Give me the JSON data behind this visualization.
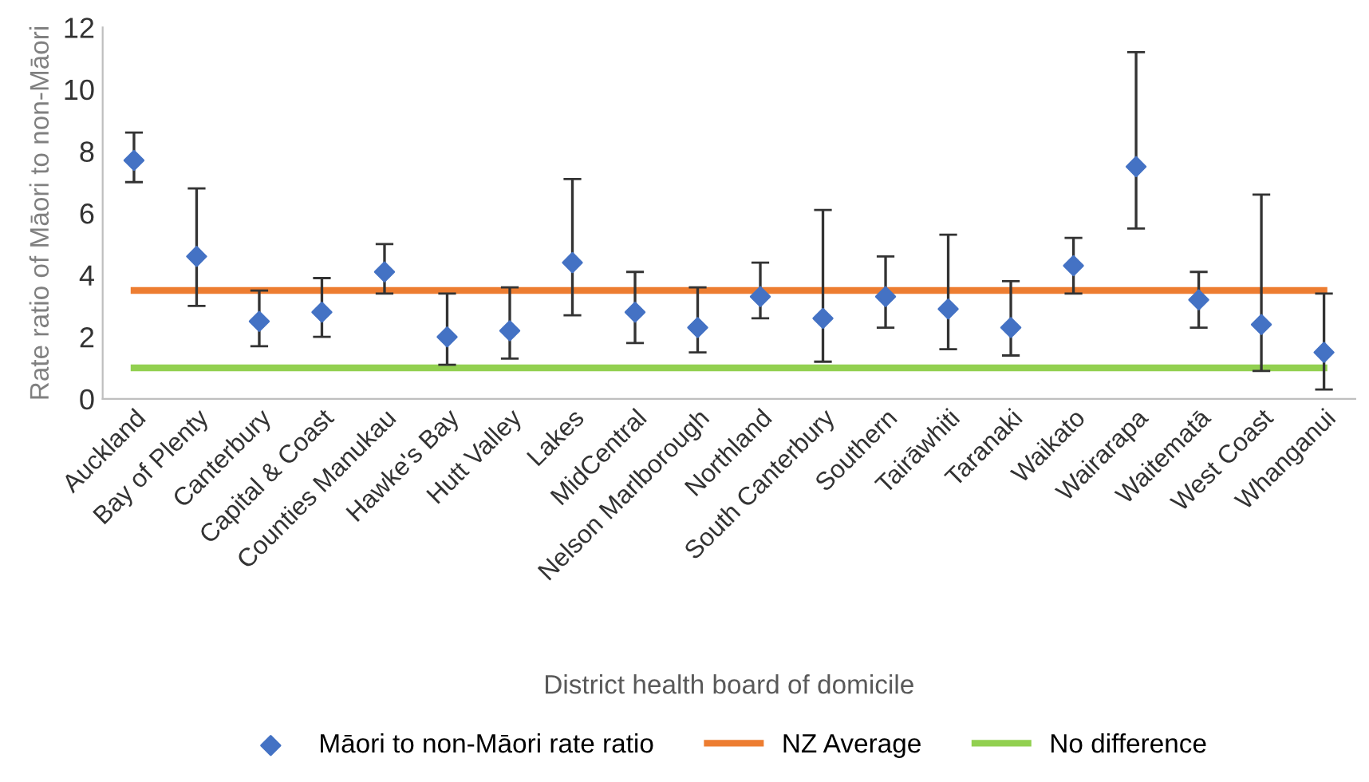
{
  "chart_data": {
    "type": "scatter",
    "xlabel": "District health board of domicile",
    "ylabel": "Rate ratio of Māori to non-Māori",
    "categories": [
      "Auckland",
      "Bay of Plenty",
      "Canterbury",
      "Capital & Coast",
      "Counties Manukau",
      "Hawke's Bay",
      "Hutt Valley",
      "Lakes",
      "MidCentral",
      "Nelson Marlborough",
      "Northland",
      "South Canterbury",
      "Southern",
      "Tairāwhiti",
      "Taranaki",
      "Waikato",
      "Wairarapa",
      "Waitematā",
      "West Coast",
      "Whanganui"
    ],
    "series": [
      {
        "name": "Māori to non-Māori rate ratio",
        "color": "#4472c4",
        "marker": "diamond",
        "values": [
          7.7,
          4.6,
          2.5,
          2.8,
          4.1,
          2.0,
          2.2,
          4.4,
          2.8,
          2.3,
          3.3,
          2.6,
          3.3,
          2.9,
          2.3,
          4.3,
          7.5,
          3.2,
          2.4,
          1.5
        ],
        "errors": [
          [
            7.0,
            8.6
          ],
          [
            3.0,
            6.8
          ],
          [
            1.7,
            3.5
          ],
          [
            2.0,
            3.9
          ],
          [
            3.4,
            5.0
          ],
          [
            1.1,
            3.4
          ],
          [
            1.3,
            3.6
          ],
          [
            2.7,
            7.1
          ],
          [
            1.8,
            4.1
          ],
          [
            1.5,
            3.6
          ],
          [
            2.6,
            4.4
          ],
          [
            1.2,
            6.1
          ],
          [
            2.3,
            4.6
          ],
          [
            1.6,
            5.3
          ],
          [
            1.4,
            3.8
          ],
          [
            3.4,
            5.2
          ],
          [
            5.5,
            11.2
          ],
          [
            2.3,
            4.1
          ],
          [
            0.9,
            6.6
          ],
          [
            0.3,
            3.4
          ]
        ]
      },
      {
        "name": "NZ Average",
        "type": "line",
        "color": "#ed7d31",
        "marker": "none",
        "values": [
          3.5,
          3.5,
          3.5,
          3.5,
          3.5,
          3.5,
          3.5,
          3.5,
          3.5,
          3.5,
          3.5,
          3.5,
          3.5,
          3.5,
          3.5,
          3.5,
          3.5,
          3.5,
          3.5,
          3.5
        ]
      },
      {
        "name": "No difference",
        "type": "line",
        "color": "#92d050",
        "marker": "none",
        "values": [
          1,
          1,
          1,
          1,
          1,
          1,
          1,
          1,
          1,
          1,
          1,
          1,
          1,
          1,
          1,
          1,
          1,
          1,
          1,
          1
        ]
      }
    ],
    "ylim": [
      0,
      12
    ],
    "yticks": [
      0,
      2,
      4,
      6,
      8,
      10,
      12
    ],
    "grid": false,
    "legend": "bottom"
  }
}
